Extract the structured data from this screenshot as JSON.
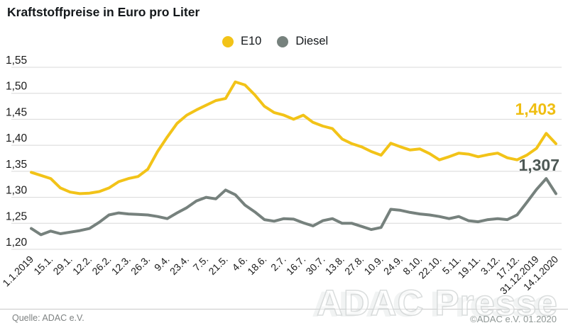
{
  "header": {
    "title": "Kraftstoffpreise in Euro pro Liter"
  },
  "legend": {
    "items": [
      {
        "label": "E10",
        "color": "#F2C318"
      },
      {
        "label": "Diesel",
        "color": "#76817D"
      }
    ]
  },
  "chart_data": {
    "type": "line",
    "title": "Kraftstoffpreise in Euro pro Liter",
    "ylabel": "Euro pro Liter",
    "ylim": [
      1.2,
      1.55
    ],
    "grid": true,
    "legend_position": "top",
    "y_tick_labels": [
      "1,55",
      "1,50",
      "1,45",
      "1,40",
      "1,35",
      "1,30",
      "1,25",
      "1,20"
    ],
    "x_tick_labels": [
      "1.1.2019",
      "15.1.",
      "29.1.",
      "12.2.",
      "26.2.",
      "12.3.",
      "26.3.",
      "9.4.",
      "23.4.",
      "7.5.",
      "21.5.",
      "4.6.",
      "18.6.",
      "2.7.",
      "16.7.",
      "30.7.",
      "13.8.",
      "27.8.",
      "10.9.",
      "24.9.",
      "8.10.",
      "22.10.",
      "5.11.",
      "19.11.",
      "3.12.",
      "17.12.",
      "31.12.2019",
      "14.1.2020"
    ],
    "x_interval": "weekly, tick labels every second week",
    "series": [
      {
        "name": "E10",
        "color": "#F2C318",
        "values": [
          1.348,
          1.342,
          1.336,
          1.318,
          1.31,
          1.307,
          1.308,
          1.311,
          1.318,
          1.33,
          1.336,
          1.34,
          1.354,
          1.388,
          1.416,
          1.442,
          1.458,
          1.468,
          1.477,
          1.486,
          1.49,
          1.522,
          1.516,
          1.497,
          1.475,
          1.463,
          1.458,
          1.45,
          1.458,
          1.444,
          1.437,
          1.432,
          1.412,
          1.403,
          1.397,
          1.388,
          1.381,
          1.404,
          1.397,
          1.391,
          1.393,
          1.384,
          1.372,
          1.378,
          1.385,
          1.383,
          1.378,
          1.382,
          1.385,
          1.376,
          1.372,
          1.381,
          1.394,
          1.423,
          1.403
        ]
      },
      {
        "name": "Diesel",
        "color": "#76817D",
        "values": [
          1.24,
          1.228,
          1.235,
          1.23,
          1.233,
          1.236,
          1.24,
          1.252,
          1.266,
          1.27,
          1.268,
          1.267,
          1.266,
          1.263,
          1.259,
          1.27,
          1.28,
          1.293,
          1.3,
          1.297,
          1.314,
          1.305,
          1.285,
          1.272,
          1.257,
          1.254,
          1.259,
          1.258,
          1.251,
          1.245,
          1.255,
          1.259,
          1.25,
          1.25,
          1.244,
          1.238,
          1.242,
          1.277,
          1.275,
          1.271,
          1.268,
          1.266,
          1.263,
          1.259,
          1.263,
          1.255,
          1.253,
          1.257,
          1.259,
          1.257,
          1.266,
          1.29,
          1.315,
          1.336,
          1.307
        ]
      }
    ],
    "annotations": [
      {
        "text": "1,403",
        "series": "E10",
        "color": "#EFBE12"
      },
      {
        "text": "1,307",
        "series": "Diesel",
        "color": "#4D5855"
      }
    ]
  },
  "footer": {
    "source": "Quelle: ADAC e.V.",
    "copyright": "©ADAC e.V. 01.2020"
  },
  "watermark": {
    "text": "ADAC Presse"
  }
}
